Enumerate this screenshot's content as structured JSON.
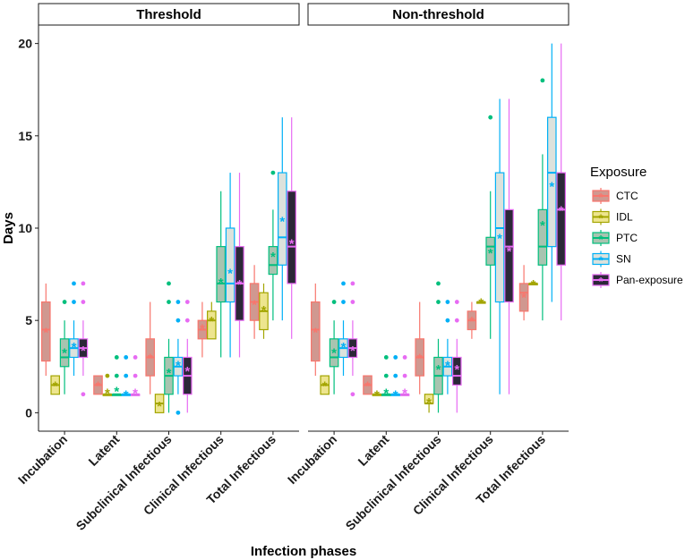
{
  "chart_data": {
    "type": "boxplot",
    "xlabel": "Infection phases",
    "ylabel": "Days",
    "ylim": [
      -1,
      21
    ],
    "yticks": [
      0,
      5,
      10,
      15,
      20
    ],
    "phases": [
      "Incubation",
      "Latent",
      "Subclinical Infectious",
      "Clinical Infectious",
      "Total Infectious"
    ],
    "legend": {
      "title": "Exposure",
      "placement": "right",
      "items": [
        {
          "name": "CTC",
          "color": "#F8766D",
          "fill": "#D09890"
        },
        {
          "name": "IDL",
          "color": "#A3A500",
          "fill": "#EDE58E"
        },
        {
          "name": "PTC",
          "color": "#00BF7D",
          "fill": "#A8C4B0"
        },
        {
          "name": "SN",
          "color": "#00B0F6",
          "fill": "#DCE2DC"
        },
        {
          "name": "Pan-exposure",
          "color": "#E76BF3",
          "fill": "#2C2838"
        }
      ]
    },
    "panels": [
      {
        "title": "Threshold",
        "boxes": {
          "Incubation": {
            "CTC": {
              "q1": 2.8,
              "median": 4.5,
              "q3": 6,
              "lo": 2,
              "hi": 7,
              "mean": 4.4,
              "outliers": []
            },
            "IDL": {
              "q1": 1,
              "median": 1.5,
              "q3": 2,
              "lo": 1,
              "hi": 2,
              "mean": 1.5,
              "outliers": []
            },
            "PTC": {
              "q1": 2.5,
              "median": 3,
              "q3": 4,
              "lo": 1,
              "hi": 5,
              "mean": 3.3,
              "outliers": [
                6
              ]
            },
            "SN": {
              "q1": 3,
              "median": 3.5,
              "q3": 4,
              "lo": 2,
              "hi": 5,
              "mean": 3.6,
              "outliers": [
                6,
                7
              ]
            },
            "Pan-exposure": {
              "q1": 3,
              "median": 3.5,
              "q3": 4,
              "lo": 2,
              "hi": 5,
              "mean": 3.4,
              "outliers": [
                1,
                6,
                7
              ]
            }
          },
          "Latent": {
            "CTC": {
              "q1": 1,
              "median": 1.5,
              "q3": 2,
              "lo": 1,
              "hi": 2,
              "mean": 1.5,
              "outliers": []
            },
            "IDL": {
              "q1": 1,
              "median": 1,
              "q3": 1,
              "lo": 1,
              "hi": 1,
              "mean": 1.1,
              "outliers": [
                2
              ]
            },
            "PTC": {
              "q1": 1,
              "median": 1,
              "q3": 1,
              "lo": 1,
              "hi": 1,
              "mean": 1.2,
              "outliers": [
                2,
                3
              ]
            },
            "SN": {
              "q1": 1,
              "median": 1,
              "q3": 1,
              "lo": 1,
              "hi": 1,
              "mean": 1.0,
              "outliers": [
                2,
                3
              ]
            },
            "Pan-exposure": {
              "q1": 1,
              "median": 1,
              "q3": 1,
              "lo": 1,
              "hi": 1,
              "mean": 1.1,
              "outliers": [
                2,
                3
              ]
            }
          },
          "Subclinical Infectious": {
            "CTC": {
              "q1": 2,
              "median": 3,
              "q3": 4,
              "lo": 1,
              "hi": 6,
              "mean": 3.0,
              "outliers": []
            },
            "IDL": {
              "q1": 0,
              "median": 0.5,
              "q3": 1,
              "lo": 0,
              "hi": 1,
              "mean": 0.4,
              "outliers": []
            },
            "PTC": {
              "q1": 1,
              "median": 2,
              "q3": 3,
              "lo": 0,
              "hi": 4,
              "mean": 2.2,
              "outliers": [
                6,
                7
              ]
            },
            "SN": {
              "q1": 2,
              "median": 2.5,
              "q3": 3,
              "lo": 1,
              "hi": 4,
              "mean": 2.6,
              "outliers": [
                0,
                5,
                6
              ]
            },
            "Pan-exposure": {
              "q1": 1,
              "median": 2,
              "q3": 3,
              "lo": 0,
              "hi": 4,
              "mean": 2.3,
              "outliers": [
                5,
                6
              ]
            }
          },
          "Clinical Infectious": {
            "CTC": {
              "q1": 4,
              "median": 4.5,
              "q3": 5,
              "lo": 3,
              "hi": 6,
              "mean": 4.6,
              "outliers": []
            },
            "IDL": {
              "q1": 4,
              "median": 5,
              "q3": 5.5,
              "lo": 4,
              "hi": 6,
              "mean": 5.0,
              "outliers": []
            },
            "PTC": {
              "q1": 6,
              "median": 7,
              "q3": 9,
              "lo": 3,
              "hi": 12,
              "mean": 7.1,
              "outliers": []
            },
            "SN": {
              "q1": 6,
              "median": 7,
              "q3": 10,
              "lo": 3,
              "hi": 13,
              "mean": 7.6,
              "outliers": []
            },
            "Pan-exposure": {
              "q1": 5,
              "median": 7,
              "q3": 9,
              "lo": 3,
              "hi": 13,
              "mean": 7.0,
              "outliers": []
            }
          },
          "Total Infectious": {
            "CTC": {
              "q1": 5,
              "median": 6,
              "q3": 7,
              "lo": 4,
              "hi": 8,
              "mean": 5.9,
              "outliers": []
            },
            "IDL": {
              "q1": 4.5,
              "median": 5.5,
              "q3": 6.5,
              "lo": 4,
              "hi": 7,
              "mean": 5.6,
              "outliers": []
            },
            "PTC": {
              "q1": 7.5,
              "median": 8,
              "q3": 9,
              "lo": 5,
              "hi": 11,
              "mean": 8.5,
              "outliers": [
                13
              ]
            },
            "SN": {
              "q1": 8,
              "median": 9.5,
              "q3": 13,
              "lo": 5,
              "hi": 16,
              "mean": 10.4,
              "outliers": []
            },
            "Pan-exposure": {
              "q1": 7,
              "median": 9,
              "q3": 12,
              "lo": 4,
              "hi": 16,
              "mean": 9.2,
              "outliers": []
            }
          }
        }
      },
      {
        "title": "Non-threshold",
        "boxes": {
          "Incubation": {
            "CTC": {
              "q1": 2.8,
              "median": 4.5,
              "q3": 6,
              "lo": 2,
              "hi": 7,
              "mean": 4.4,
              "outliers": []
            },
            "IDL": {
              "q1": 1,
              "median": 1.5,
              "q3": 2,
              "lo": 1,
              "hi": 2,
              "mean": 1.5,
              "outliers": []
            },
            "PTC": {
              "q1": 2.5,
              "median": 3,
              "q3": 4,
              "lo": 1,
              "hi": 5,
              "mean": 3.3,
              "outliers": [
                6
              ]
            },
            "SN": {
              "q1": 3,
              "median": 3.5,
              "q3": 4,
              "lo": 2,
              "hi": 5,
              "mean": 3.6,
              "outliers": [
                6,
                7
              ]
            },
            "Pan-exposure": {
              "q1": 3,
              "median": 3.5,
              "q3": 4,
              "lo": 2,
              "hi": 5,
              "mean": 3.4,
              "outliers": [
                1,
                6,
                7
              ]
            }
          },
          "Latent": {
            "CTC": {
              "q1": 1,
              "median": 1.5,
              "q3": 2,
              "lo": 1,
              "hi": 2,
              "mean": 1.5,
              "outliers": []
            },
            "IDL": {
              "q1": 1,
              "median": 1,
              "q3": 1,
              "lo": 1,
              "hi": 1,
              "mean": 1.0,
              "outliers": []
            },
            "PTC": {
              "q1": 1,
              "median": 1,
              "q3": 1,
              "lo": 1,
              "hi": 1,
              "mean": 1.1,
              "outliers": [
                2,
                3
              ]
            },
            "SN": {
              "q1": 1,
              "median": 1,
              "q3": 1,
              "lo": 1,
              "hi": 1,
              "mean": 1.0,
              "outliers": [
                2,
                3
              ]
            },
            "Pan-exposure": {
              "q1": 1,
              "median": 1,
              "q3": 1,
              "lo": 1,
              "hi": 1,
              "mean": 1.1,
              "outliers": [
                2,
                3
              ]
            }
          },
          "Subclinical Infectious": {
            "CTC": {
              "q1": 2,
              "median": 3,
              "q3": 4,
              "lo": 1,
              "hi": 6,
              "mean": 3.0,
              "outliers": []
            },
            "IDL": {
              "q1": 0.5,
              "median": 0.5,
              "q3": 1,
              "lo": 0,
              "hi": 1,
              "mean": 0.6,
              "outliers": []
            },
            "PTC": {
              "q1": 1,
              "median": 2,
              "q3": 3,
              "lo": 0,
              "hi": 4,
              "mean": 2.4,
              "outliers": [
                6,
                7
              ]
            },
            "SN": {
              "q1": 2,
              "median": 2.5,
              "q3": 3,
              "lo": 1,
              "hi": 4,
              "mean": 2.6,
              "outliers": [
                5,
                6
              ]
            },
            "Pan-exposure": {
              "q1": 1.5,
              "median": 2,
              "q3": 3,
              "lo": 0,
              "hi": 4,
              "mean": 2.4,
              "outliers": [
                5,
                6
              ]
            }
          },
          "Clinical Infectious": {
            "CTC": {
              "q1": 4.5,
              "median": 5,
              "q3": 5.5,
              "lo": 4,
              "hi": 6,
              "mean": 5.0,
              "outliers": []
            },
            "IDL": {
              "q1": 6,
              "median": 6,
              "q3": 6,
              "lo": 6,
              "hi": 6,
              "mean": 6.0,
              "outliers": []
            },
            "PTC": {
              "q1": 8,
              "median": 9,
              "q3": 9.5,
              "lo": 4,
              "hi": 12,
              "mean": 8.7,
              "outliers": [
                16
              ]
            },
            "SN": {
              "q1": 6,
              "median": 10,
              "q3": 13,
              "lo": 1,
              "hi": 17,
              "mean": 9.5,
              "outliers": []
            },
            "Pan-exposure": {
              "q1": 6,
              "median": 9,
              "q3": 11,
              "lo": 1,
              "hi": 17,
              "mean": 8.8,
              "outliers": []
            }
          },
          "Total Infectious": {
            "CTC": {
              "q1": 5.5,
              "median": 6.5,
              "q3": 7,
              "lo": 5,
              "hi": 8,
              "mean": 6.3,
              "outliers": []
            },
            "IDL": {
              "q1": 7,
              "median": 7,
              "q3": 7,
              "lo": 7,
              "hi": 7,
              "mean": 7.0,
              "outliers": []
            },
            "PTC": {
              "q1": 8,
              "median": 9,
              "q3": 11,
              "lo": 5,
              "hi": 14,
              "mean": 10.2,
              "outliers": [
                18
              ]
            },
            "SN": {
              "q1": 9,
              "median": 13,
              "q3": 16,
              "lo": 6,
              "hi": 20,
              "mean": 12.3,
              "outliers": []
            },
            "Pan-exposure": {
              "q1": 8,
              "median": 11,
              "q3": 13,
              "lo": 5,
              "hi": 20,
              "mean": 11.0,
              "outliers": []
            }
          }
        }
      }
    ]
  }
}
